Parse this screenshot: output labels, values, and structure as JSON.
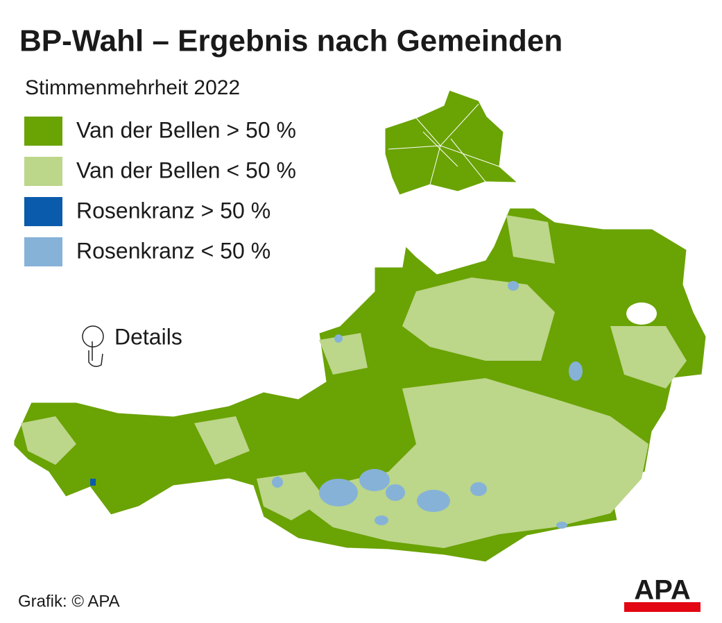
{
  "title": "BP-Wahl – Ergebnis nach Gemeinden",
  "subtitle": "Stimmenmehrheit 2022",
  "legend": [
    {
      "label": "Van der Bellen > 50 %",
      "color": "#6aa304"
    },
    {
      "label": "Van der Bellen < 50 %",
      "color": "#bcd68a"
    },
    {
      "label": "Rosenkranz > 50 %",
      "color": "#0a5bab"
    },
    {
      "label": "Rosenkranz < 50 %",
      "color": "#86b2d8"
    }
  ],
  "details": "Details",
  "source": "Grafik: © APA",
  "logo": "APA"
}
